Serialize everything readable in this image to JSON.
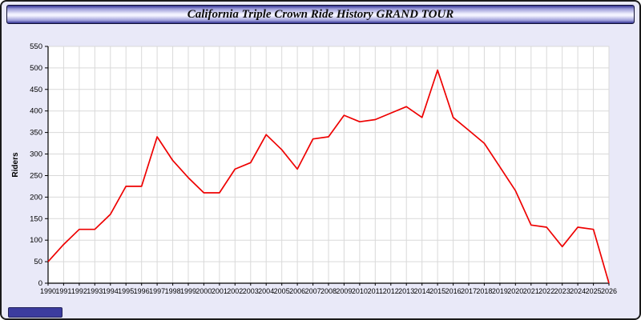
{
  "chart_data": {
    "type": "line",
    "title": "California Triple Crown Ride History GRAND TOUR",
    "xlabel": "",
    "ylabel": "Riders",
    "x": [
      "1990",
      "1991",
      "1992",
      "1993",
      "1994",
      "1995",
      "1996",
      "1997",
      "1998",
      "1999",
      "2000",
      "2001",
      "2002",
      "2003",
      "2004",
      "2005",
      "2006",
      "2007",
      "2008",
      "2009",
      "2010",
      "2011",
      "2012",
      "2013",
      "2014",
      "2015",
      "2016",
      "2017",
      "2018",
      "2019",
      "2020",
      "2021",
      "2022",
      "2023",
      "2024",
      "2025",
      "2026"
    ],
    "values": [
      50,
      90,
      125,
      125,
      160,
      225,
      225,
      340,
      285,
      245,
      210,
      210,
      265,
      280,
      345,
      310,
      265,
      335,
      340,
      390,
      375,
      380,
      395,
      410,
      385,
      495,
      385,
      355,
      325,
      270,
      215,
      135,
      130,
      85,
      130,
      125,
      0
    ],
    "ylim": [
      0,
      550
    ],
    "ytick_step": 50,
    "grid": true,
    "legend": "none"
  },
  "colors": {
    "window_bg": "#e9e9f8",
    "plot_bg": "#ffffff",
    "grid": "#d9d9d9",
    "axis": "#000000",
    "line": "#ee0000",
    "titlebar_dark": "#2f2f8f",
    "titlebar_light": "#f2f2ff",
    "footer_badge": "#3c3c9e",
    "border": "#1a1a1a"
  }
}
